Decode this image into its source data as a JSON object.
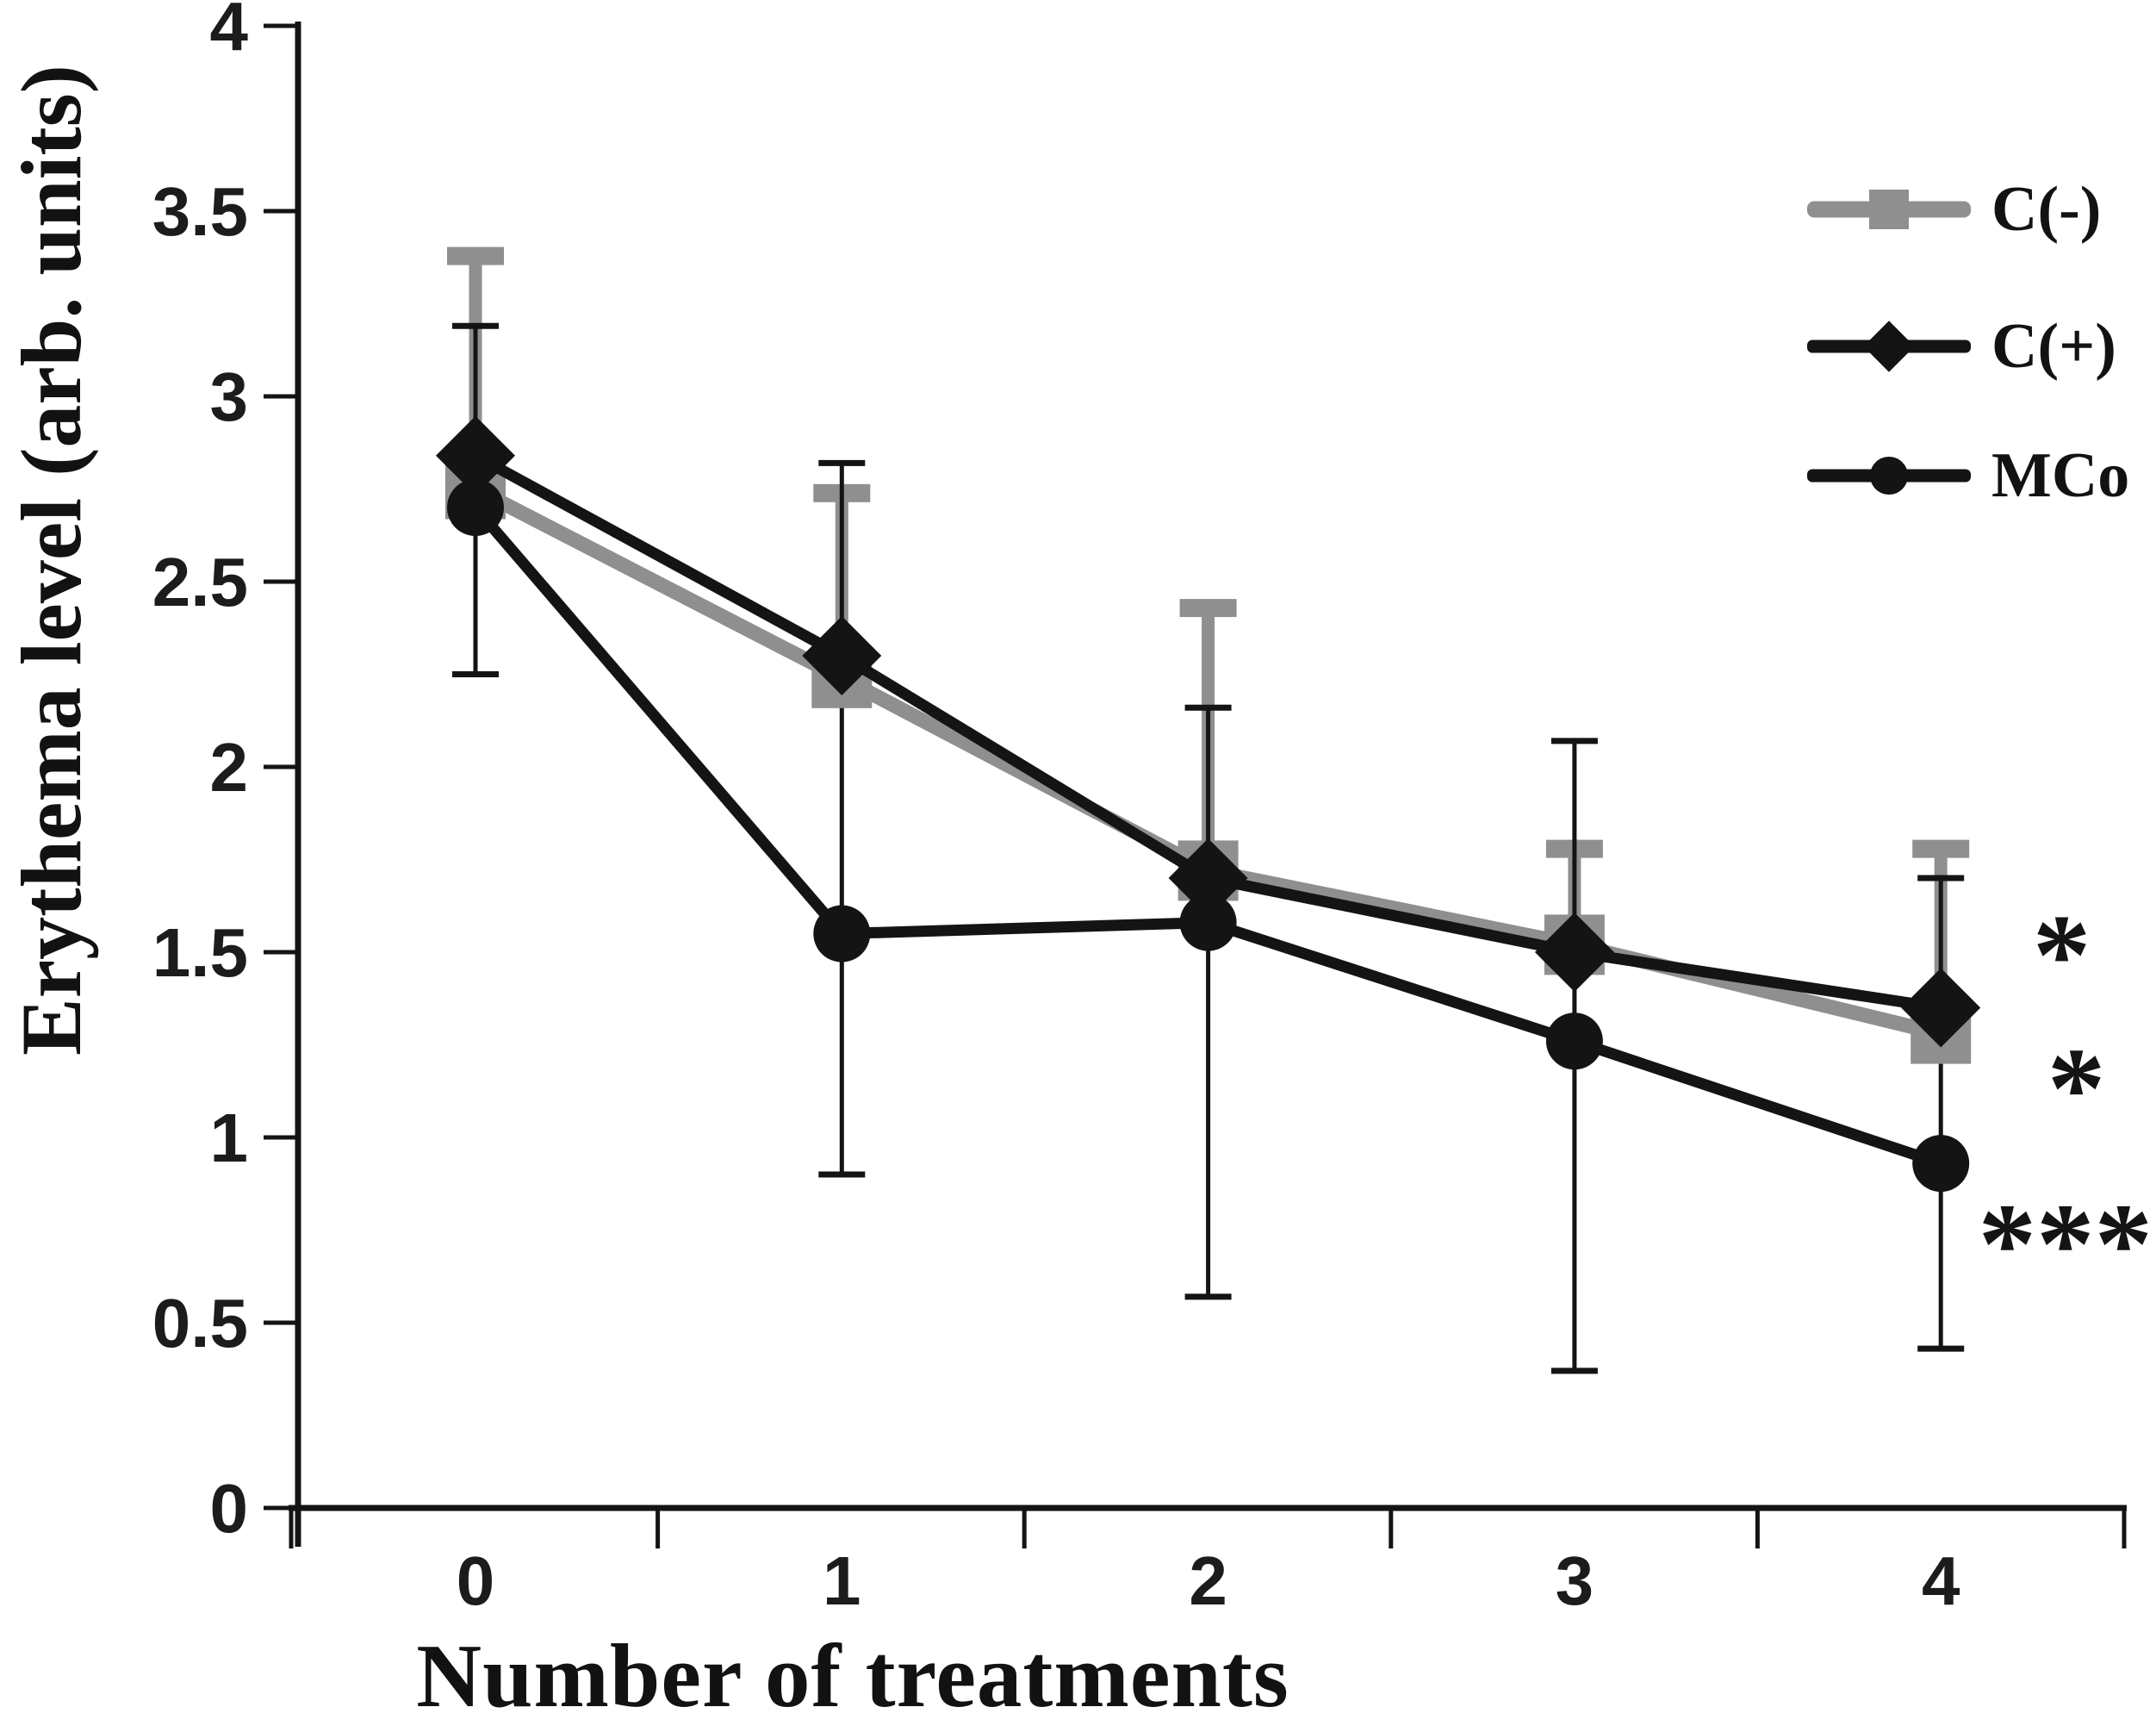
{
  "figure": {
    "background_color": "#ffffff",
    "text_color": "#121212"
  },
  "chart_data": {
    "type": "line",
    "title": "",
    "xlabel": "Number of treatments",
    "ylabel": "Erythema level (arb. units)",
    "x": [
      0,
      1,
      2,
      3,
      4
    ],
    "xtick_labels": [
      "0",
      "1",
      "2",
      "3",
      "4"
    ],
    "ylim": [
      0,
      4
    ],
    "yticks": [
      0,
      0.5,
      1,
      1.5,
      2,
      2.5,
      3,
      3.5,
      4
    ],
    "ytick_labels": [
      "0",
      "0.5",
      "1",
      "1.5",
      "2",
      "2.5",
      "3",
      "3.5",
      "4"
    ],
    "grid": false,
    "legend_position": "top-right",
    "series": [
      {
        "name": "C(-)",
        "marker": "square",
        "color": "#8f8f8f",
        "line_width": 17,
        "values": [
          2.75,
          2.24,
          1.72,
          1.52,
          1.28
        ],
        "err_top": [
          3.38,
          2.74,
          2.43,
          1.78,
          1.78
        ]
      },
      {
        "name": "C(+)",
        "marker": "diamond",
        "color": "#141414",
        "line_width": 13,
        "values": [
          2.84,
          2.3,
          1.7,
          1.5,
          1.35
        ],
        "err_top": [
          3.19,
          2.82,
          2.16,
          2.07,
          1.7
        ]
      },
      {
        "name": "MCo",
        "marker": "circle",
        "color": "#141414",
        "line_width": 13,
        "values": [
          2.7,
          1.55,
          1.58,
          1.26,
          0.93
        ],
        "err_bottom": [
          2.25,
          0.9,
          0.57,
          0.37,
          0.43
        ]
      }
    ],
    "annotations": [
      {
        "text": "*",
        "x": 4.33,
        "y": 1.55
      },
      {
        "text": "*",
        "x": 4.37,
        "y": 1.19
      },
      {
        "text": "***",
        "x": 4.34,
        "y": 0.77
      }
    ]
  }
}
